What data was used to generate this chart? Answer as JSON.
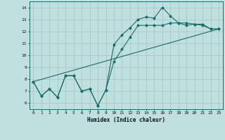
{
  "xlabel": "Humidex (Indice chaleur)",
  "xlim": [
    -0.5,
    23.5
  ],
  "ylim": [
    5.5,
    14.5
  ],
  "xticks": [
    0,
    1,
    2,
    3,
    4,
    5,
    6,
    7,
    8,
    9,
    10,
    11,
    12,
    13,
    14,
    15,
    16,
    17,
    18,
    19,
    20,
    21,
    22,
    23
  ],
  "yticks": [
    6,
    7,
    8,
    9,
    10,
    11,
    12,
    13,
    14
  ],
  "bg_color": "#c0e0e0",
  "line_color": "#1a6b6b",
  "grid_color": "#a8cccc",
  "line1_x": [
    0,
    1,
    2,
    3,
    4,
    5,
    6,
    7,
    8,
    9,
    10,
    11,
    12,
    13,
    14,
    15,
    16,
    17,
    18,
    19,
    20,
    21,
    22,
    23
  ],
  "line1_y": [
    7.8,
    6.6,
    7.2,
    6.5,
    8.3,
    8.3,
    7.0,
    7.2,
    5.8,
    7.1,
    10.9,
    11.7,
    12.3,
    13.0,
    13.2,
    13.1,
    14.0,
    13.3,
    12.7,
    12.5,
    12.6,
    12.6,
    12.2,
    12.2
  ],
  "line2_x": [
    0,
    1,
    2,
    3,
    4,
    5,
    6,
    7,
    8,
    9,
    10,
    11,
    12,
    13,
    14,
    15,
    16,
    17,
    18,
    19,
    20,
    21,
    22,
    23
  ],
  "line2_y": [
    7.8,
    6.6,
    7.2,
    6.5,
    8.3,
    8.3,
    7.0,
    7.2,
    5.8,
    7.1,
    9.5,
    10.5,
    11.5,
    12.5,
    12.5,
    12.5,
    12.5,
    12.7,
    12.7,
    12.7,
    12.6,
    12.5,
    12.2,
    12.2
  ],
  "line3_x": [
    0,
    23
  ],
  "line3_y": [
    7.8,
    12.2
  ]
}
